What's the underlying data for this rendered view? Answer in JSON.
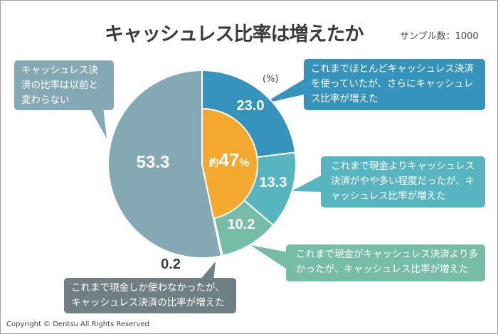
{
  "title": "キャッシュレス比率は増えたか",
  "sample": "サンプル数：1000",
  "unit": "(%)",
  "copyright": "Copyright © Dentsu All Rights Reserved",
  "center_label": {
    "prefix": "約",
    "value": "47",
    "suffix": "%"
  },
  "chart_data": {
    "type": "pie",
    "unit": "%",
    "slices": [
      {
        "label": "これまでほとんどキャッシュレス決済を使っていたが、さらにキャッシュレス比率が増えた",
        "value": 23.0,
        "display": "23.0",
        "color": "#3693bb"
      },
      {
        "label": "これまで現金よりキャッシュレス決済がやや多い程度だったが、キャッシュレス比率が増えた",
        "value": 13.3,
        "display": "13.3",
        "color": "#57b5c0"
      },
      {
        "label": "これまで現金がキャッシュレス決済より多かったが、キャッシュレス比率が増えた",
        "value": 10.2,
        "display": "10.2",
        "color": "#76bda8"
      },
      {
        "label": "これまで現金しか使わなかったが、キャッシュレス決済の比率が増えた",
        "value": 0.2,
        "display": "0.2",
        "color": "#6f7f84"
      },
      {
        "label": "キャッシュレス決済の比率は以前と変わらない",
        "value": 53.3,
        "display": "53.3",
        "color": "#84a9b4"
      }
    ],
    "inner_highlight": {
      "value": 46.7,
      "color": "#f5a82e"
    }
  }
}
